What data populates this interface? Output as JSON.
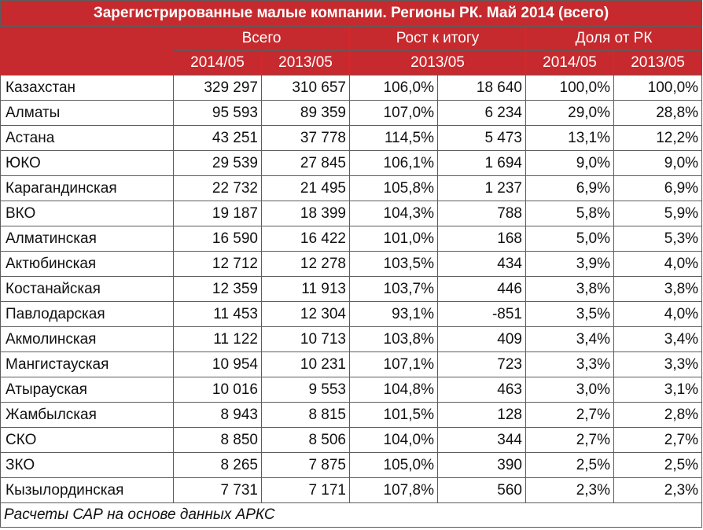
{
  "title": "Зарегистрированные малые компании. Регионы РК. Май 2014 (всего)",
  "headers": {
    "total": "Всего",
    "growth": "Рост к итогу",
    "share": "Доля от РК",
    "y2014": "2014/05",
    "y2013": "2013/05",
    "growth_base": "2013/05",
    "share_2014": "2014/05",
    "share_2013": "2013/05"
  },
  "rows": [
    {
      "region": "Казахстан",
      "v2014": "329 297",
      "v2013": "310 657",
      "growth_pct": "106,0%",
      "growth_abs": "18 640",
      "share2014": "100,0%",
      "share2013": "100,0%"
    },
    {
      "region": "Алматы",
      "v2014": "95 593",
      "v2013": "89 359",
      "growth_pct": "107,0%",
      "growth_abs": "6 234",
      "share2014": "29,0%",
      "share2013": "28,8%"
    },
    {
      "region": "Астана",
      "v2014": "43 251",
      "v2013": "37 778",
      "growth_pct": "114,5%",
      "growth_abs": "5 473",
      "share2014": "13,1%",
      "share2013": "12,2%"
    },
    {
      "region": "ЮКО",
      "v2014": "29 539",
      "v2013": "27 845",
      "growth_pct": "106,1%",
      "growth_abs": "1 694",
      "share2014": "9,0%",
      "share2013": "9,0%"
    },
    {
      "region": "Карагандинская",
      "v2014": "22 732",
      "v2013": "21 495",
      "growth_pct": "105,8%",
      "growth_abs": "1 237",
      "share2014": "6,9%",
      "share2013": "6,9%"
    },
    {
      "region": "ВКО",
      "v2014": "19 187",
      "v2013": "18 399",
      "growth_pct": "104,3%",
      "growth_abs": "788",
      "share2014": "5,8%",
      "share2013": "5,9%"
    },
    {
      "region": "Алматинская",
      "v2014": "16 590",
      "v2013": "16 422",
      "growth_pct": "101,0%",
      "growth_abs": "168",
      "share2014": "5,0%",
      "share2013": "5,3%"
    },
    {
      "region": "Актюбинская",
      "v2014": "12 712",
      "v2013": "12 278",
      "growth_pct": "103,5%",
      "growth_abs": "434",
      "share2014": "3,9%",
      "share2013": "4,0%"
    },
    {
      "region": "Костанайская",
      "v2014": "12 359",
      "v2013": "11 913",
      "growth_pct": "103,7%",
      "growth_abs": "446",
      "share2014": "3,8%",
      "share2013": "3,8%"
    },
    {
      "region": "Павлодарская",
      "v2014": "11 453",
      "v2013": "12 304",
      "growth_pct": "93,1%",
      "growth_abs": "-851",
      "share2014": "3,5%",
      "share2013": "4,0%"
    },
    {
      "region": "Акмолинская",
      "v2014": "11 122",
      "v2013": "10 713",
      "growth_pct": "103,8%",
      "growth_abs": "409",
      "share2014": "3,4%",
      "share2013": "3,4%"
    },
    {
      "region": "Мангистауская",
      "v2014": "10 954",
      "v2013": "10 231",
      "growth_pct": "107,1%",
      "growth_abs": "723",
      "share2014": "3,3%",
      "share2013": "3,3%"
    },
    {
      "region": "Атырауская",
      "v2014": "10 016",
      "v2013": "9 553",
      "growth_pct": "104,8%",
      "growth_abs": "463",
      "share2014": "3,0%",
      "share2013": "3,1%"
    },
    {
      "region": "Жамбылская",
      "v2014": "8 943",
      "v2013": "8 815",
      "growth_pct": "101,5%",
      "growth_abs": "128",
      "share2014": "2,7%",
      "share2013": "2,8%"
    },
    {
      "region": "СКО",
      "v2014": "8 850",
      "v2013": "8 506",
      "growth_pct": "104,0%",
      "growth_abs": "344",
      "share2014": "2,7%",
      "share2013": "2,7%"
    },
    {
      "region": "ЗКО",
      "v2014": "8 265",
      "v2013": "7 875",
      "growth_pct": "105,0%",
      "growth_abs": "390",
      "share2014": "2,5%",
      "share2013": "2,5%"
    },
    {
      "region": "Кызылординская",
      "v2014": "7 731",
      "v2013": "7 171",
      "growth_pct": "107,8%",
      "growth_abs": "560",
      "share2014": "2,3%",
      "share2013": "2,3%"
    }
  ],
  "footer": "Расчеты САР на основе данных АРКС",
  "colors": {
    "header_bg": "#c62a2e",
    "header_text": "#ffffff",
    "border": "#5c5c5c"
  }
}
